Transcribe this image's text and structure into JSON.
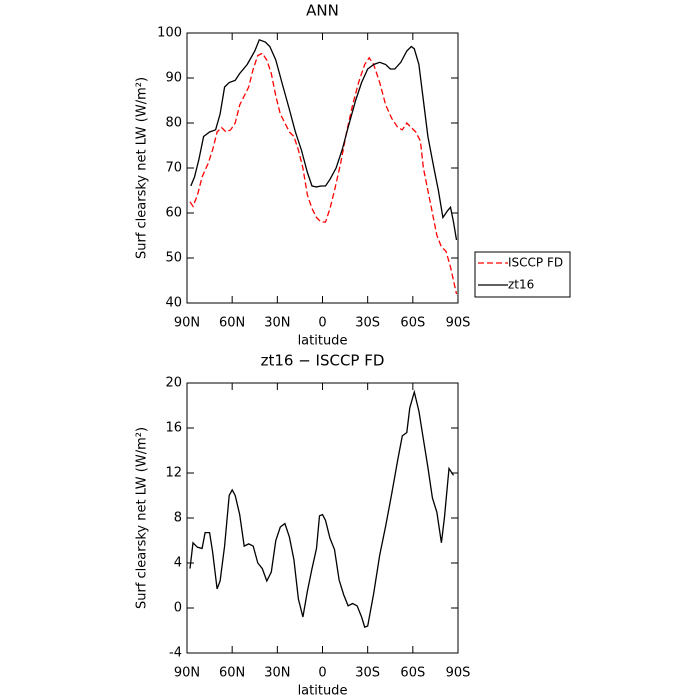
{
  "chart_data": [
    {
      "type": "line",
      "title": "ANN",
      "xlabel": "latitude",
      "ylabel": "Surf clearsky net LW (W/m²)",
      "xlim": [
        90,
        -90
      ],
      "xticks": [
        {
          "value": 90,
          "label": "90N"
        },
        {
          "value": 60,
          "label": "60N"
        },
        {
          "value": 30,
          "label": "30N"
        },
        0,
        {
          "value": -30,
          "label": "30S"
        },
        {
          "value": -60,
          "label": "60S"
        },
        {
          "value": -90,
          "label": "90S"
        }
      ],
      "ylim": [
        40,
        100
      ],
      "yticks": [
        40,
        50,
        60,
        70,
        80,
        90,
        100
      ],
      "legend": "outside right",
      "series": [
        {
          "name": "ISCCP FD",
          "color": "#ff0000",
          "dash": true,
          "x": [
            88,
            86,
            83,
            80,
            76,
            73,
            70,
            67,
            64,
            61,
            58,
            55,
            52,
            49,
            46,
            43,
            40,
            37,
            34,
            31,
            28,
            25,
            22,
            19,
            16,
            13,
            10,
            7,
            4,
            1,
            -2,
            -5,
            -8,
            -12,
            -16,
            -20,
            -24,
            -28,
            -31,
            -34,
            -38,
            -42,
            -46,
            -50,
            -53,
            -56,
            -59,
            -62,
            -65,
            -67,
            -70,
            -73,
            -76,
            -79,
            -82,
            -85,
            -87,
            -89
          ],
          "values": [
            62.5,
            61.5,
            64,
            68,
            71,
            74,
            78,
            79,
            78,
            78.5,
            80,
            84,
            86,
            88,
            92,
            95,
            95.5,
            94,
            91,
            86,
            82,
            80,
            78,
            77,
            74,
            70,
            64,
            61,
            59,
            58,
            58,
            61,
            65,
            71,
            78,
            84,
            89,
            93,
            94.5,
            93,
            89,
            84,
            81,
            79,
            78.5,
            80,
            79,
            78,
            76,
            70,
            65,
            60,
            55,
            52.5,
            51.5,
            48,
            45,
            42
          ]
        },
        {
          "name": "zt16",
          "color": "#000000",
          "dash": false,
          "x": [
            87.5,
            85,
            82,
            79,
            75,
            71,
            68,
            65,
            62,
            58,
            55,
            50,
            45,
            42,
            38,
            35,
            31,
            27,
            22,
            18,
            14,
            10,
            7,
            4,
            1,
            -2,
            -5,
            -9,
            -13,
            -17,
            -22,
            -26,
            -30,
            -34,
            -38,
            -42,
            -45,
            -48,
            -52,
            -56,
            -59,
            -61,
            -64,
            -67,
            -70,
            -74,
            -77,
            -80,
            -83,
            -85,
            -87,
            -89
          ],
          "values": [
            66,
            68,
            72,
            77,
            78,
            78.5,
            82,
            88,
            89,
            89.5,
            91,
            93,
            96,
            98.5,
            98,
            97,
            94,
            89,
            83,
            78,
            74,
            69,
            66,
            65.8,
            66,
            66,
            67.5,
            70,
            74,
            79,
            85,
            89,
            92,
            93,
            93.5,
            93,
            92,
            92,
            93.5,
            96,
            97,
            96.5,
            93,
            85,
            77,
            70,
            65,
            59,
            60.5,
            61.3,
            58,
            54
          ]
        }
      ]
    },
    {
      "type": "line",
      "title": "zt16 − ISCCP FD",
      "xlabel": "latitude",
      "ylabel": "Surf clearsky net LW (W/m²)",
      "xlim": [
        90,
        -90
      ],
      "xticks": [
        {
          "value": 90,
          "label": "90N"
        },
        {
          "value": 60,
          "label": "60N"
        },
        {
          "value": 30,
          "label": "30N"
        },
        0,
        {
          "value": -30,
          "label": "30S"
        },
        {
          "value": -60,
          "label": "60S"
        },
        {
          "value": -90,
          "label": "90S"
        }
      ],
      "ylim": [
        -4,
        20
      ],
      "yticks": [
        -4,
        0,
        4,
        8,
        12,
        16,
        20
      ],
      "series": [
        {
          "color": "#000000",
          "dash": false,
          "x": [
            88,
            86,
            83,
            80,
            78,
            75,
            73,
            70,
            68,
            65,
            62,
            60,
            58,
            55,
            52,
            49,
            46,
            43,
            40,
            37,
            34,
            31,
            28,
            25,
            22,
            19,
            16,
            13,
            10,
            7,
            4,
            2,
            0,
            -2,
            -5,
            -8,
            -11,
            -14,
            -17,
            -20,
            -23,
            -26,
            -28,
            -30,
            -34,
            -38,
            -42,
            -46,
            -50,
            -53,
            -56,
            -58,
            -61,
            -64,
            -67,
            -70,
            -73,
            -76,
            -79,
            -81,
            -84,
            -87
          ],
          "values": [
            3.5,
            5.8,
            5.4,
            5.3,
            6.7,
            6.7,
            5,
            1.7,
            2.4,
            5.5,
            10,
            10.5,
            10,
            8.3,
            5.5,
            5.7,
            5.5,
            4,
            3.5,
            2.4,
            3.2,
            6,
            7.2,
            7.5,
            6.3,
            4.3,
            0.8,
            -0.8,
            1.5,
            3.5,
            5.3,
            8.2,
            8.3,
            7.8,
            6.2,
            5.2,
            2.5,
            1.2,
            0.2,
            0.4,
            0.2,
            -0.8,
            -1.7,
            -1.6,
            1.3,
            4.7,
            7.3,
            10.2,
            13.2,
            15.3,
            15.6,
            17.8,
            19.2,
            17.5,
            15,
            12.5,
            9.8,
            8.5,
            5.8,
            8,
            12.4,
            11.8
          ]
        }
      ]
    }
  ]
}
